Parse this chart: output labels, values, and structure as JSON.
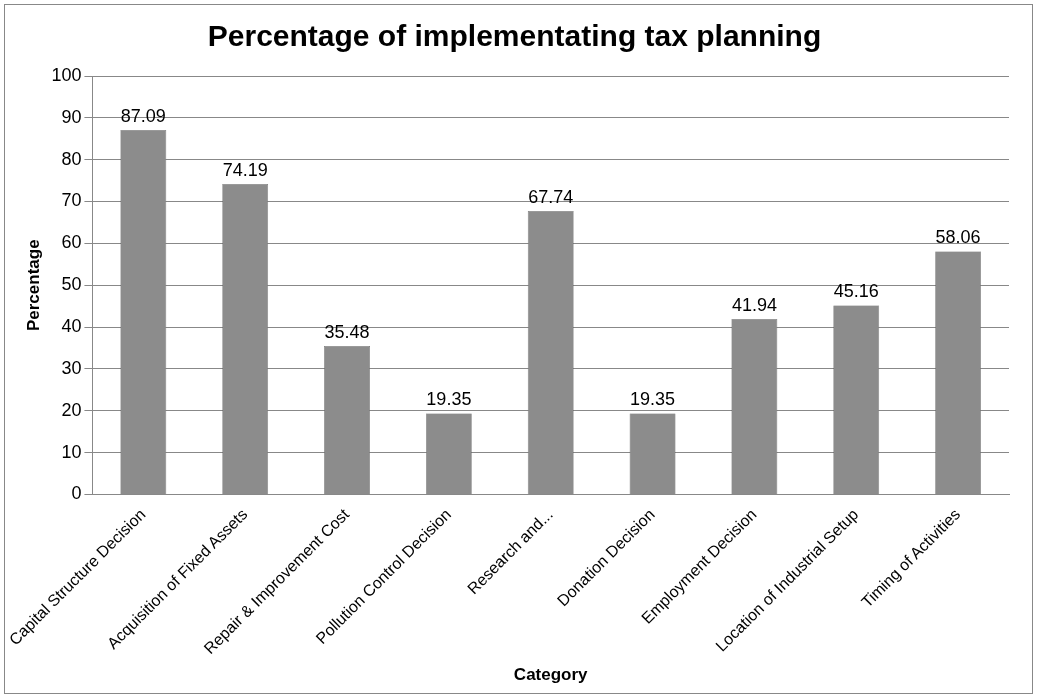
{
  "chart_data": {
    "type": "bar",
    "title": "Percentage of implementating tax planning",
    "xlabel": "Category",
    "ylabel": "Percentage",
    "categories": [
      "Capital Structure Decision",
      "Acquisition of Fixed Assets",
      "Repair & Improvement Cost",
      "Pollution Control Decision",
      "Research and...",
      "Donation Decision",
      "Employment Decision",
      "Location of Industrial Setup",
      "Timing of Activities"
    ],
    "values": [
      87.09,
      74.19,
      35.48,
      19.35,
      67.74,
      19.35,
      41.94,
      45.16,
      58.06
    ],
    "color": "#8c8c8c",
    "ylim": [
      0,
      100
    ],
    "yticks": [
      0,
      10,
      20,
      30,
      40,
      50,
      60,
      70,
      80,
      90,
      100
    ],
    "grid": "y",
    "legend": false,
    "data_labels": true
  }
}
